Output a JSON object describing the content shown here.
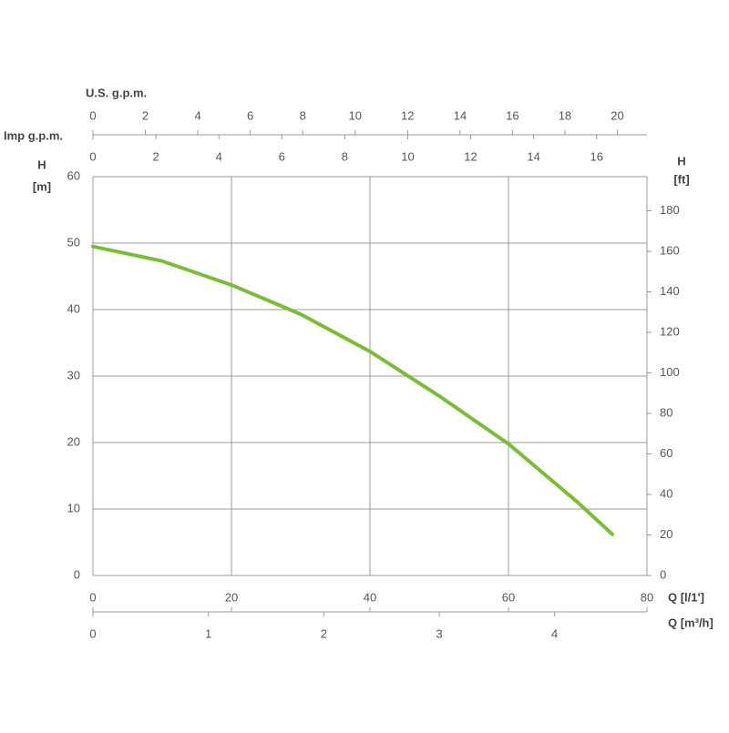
{
  "chart_data": {
    "type": "line",
    "xlabel": "Q [l/1']",
    "ylabel": [
      "H",
      "[m]"
    ],
    "y2label": [
      "H",
      "[ft]"
    ],
    "x": [
      0,
      10,
      20,
      30,
      40,
      50,
      60,
      70,
      75
    ],
    "series": [
      {
        "color": "#7dbb3c",
        "values": [
          49.5,
          47.3,
          43.7,
          39.3,
          33.7,
          27,
          19.8,
          11,
          6.2
        ]
      }
    ],
    "xlim": [
      0,
      80
    ],
    "xticks": [
      0,
      20,
      40,
      60,
      80
    ],
    "ylim": [
      0,
      60
    ],
    "yticks": [
      0,
      10,
      20,
      30,
      40,
      50,
      60
    ],
    "y2lim": [
      0,
      196.85
    ],
    "y2ticks": [
      0,
      20,
      40,
      60,
      80,
      100,
      120,
      140,
      160,
      180
    ],
    "grid": true,
    "extra_x_axes": [
      {
        "label": "U.S. g.p.m.",
        "lim": [
          0,
          21.13
        ],
        "ticks": [
          0,
          2,
          4,
          6,
          8,
          10,
          12,
          14,
          16,
          18,
          20
        ]
      },
      {
        "label": "Imp g.p.m.",
        "lim": [
          0,
          17.6
        ],
        "ticks": [
          0,
          2,
          4,
          6,
          8,
          10,
          12,
          14,
          16
        ]
      },
      {
        "label": "Q [m³/h]",
        "lim": [
          0,
          4.8
        ],
        "ticks": [
          0,
          1,
          2,
          3,
          4
        ]
      }
    ]
  }
}
